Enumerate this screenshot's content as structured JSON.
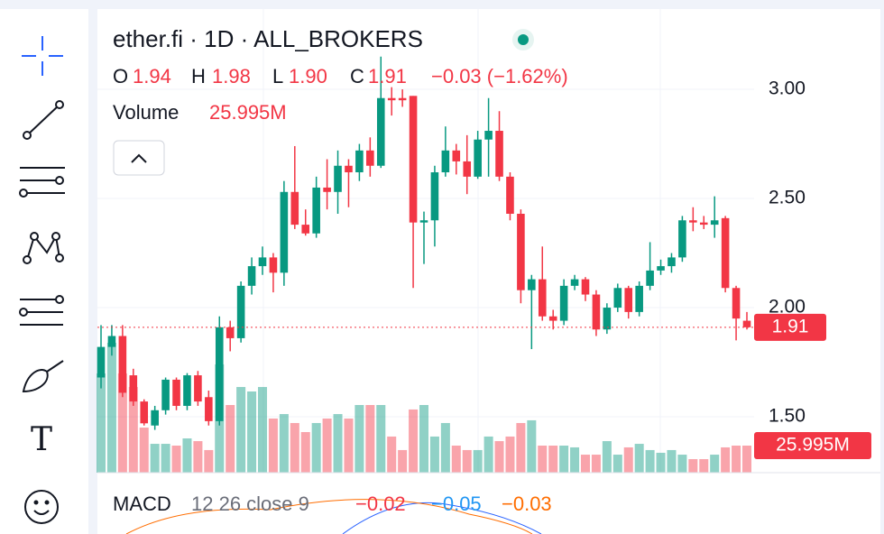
{
  "header": {
    "title": "ether.fi · 1D · ALL_BROKERS",
    "o_label": "O",
    "o": "1.94",
    "h_label": "H",
    "h": "1.98",
    "l_label": "L",
    "l": "1.90",
    "c_label": "C",
    "c": "1.91",
    "change": "−0.03 (−1.62%)",
    "volume_label": "Volume",
    "volume": "25.995M",
    "macd_label": "MACD",
    "macd_params": "12 26 close 9",
    "macd": "−0.02",
    "signal": "−0.05",
    "hist": "−0.03",
    "toggle": "^"
  },
  "toolbar": {
    "text_tool": "T"
  },
  "chart_data": {
    "type": "candlestick",
    "open": [
      1.68,
      1.82,
      1.87,
      1.69,
      1.57,
      1.46,
      1.53,
      1.67,
      1.55,
      1.69,
      1.59,
      1.48,
      1.91,
      1.86,
      2.1,
      2.19,
      2.23,
      2.16,
      2.53,
      2.38,
      2.34,
      2.55,
      2.53,
      2.65,
      2.62,
      2.72,
      2.65,
      2.96,
      2.96,
      2.97,
      2.39,
      2.4,
      2.62,
      2.72,
      2.67,
      2.6,
      2.77,
      2.81,
      2.6,
      2.43,
      2.08,
      2.13,
      1.96,
      1.94,
      2.1,
      2.13,
      2.06,
      1.9,
      2.0,
      2.09,
      1.98,
      2.1,
      2.17,
      2.19,
      2.23,
      2.4,
      2.39,
      2.38,
      2.41,
      2.09,
      1.94
    ],
    "high": [
      1.92,
      1.92,
      1.92,
      1.72,
      1.58,
      1.55,
      1.68,
      1.68,
      1.7,
      1.71,
      1.62,
      1.96,
      1.94,
      2.12,
      2.23,
      2.28,
      2.25,
      2.58,
      2.74,
      2.45,
      2.6,
      2.68,
      2.72,
      2.68,
      2.75,
      2.78,
      3.15,
      3.01,
      3.0,
      2.97,
      2.44,
      2.65,
      2.83,
      2.75,
      2.79,
      2.81,
      2.96,
      2.9,
      2.62,
      2.45,
      2.15,
      2.28,
      1.99,
      2.13,
      2.15,
      2.14,
      2.08,
      2.02,
      2.11,
      2.1,
      2.12,
      2.3,
      2.22,
      2.25,
      2.42,
      2.46,
      2.42,
      2.51,
      2.42,
      2.1,
      1.98
    ],
    "low": [
      1.63,
      1.78,
      1.59,
      1.55,
      1.46,
      1.44,
      1.51,
      1.53,
      1.53,
      1.55,
      1.46,
      1.46,
      1.8,
      1.84,
      2.06,
      2.15,
      2.07,
      2.1,
      2.36,
      2.33,
      2.32,
      2.45,
      2.43,
      2.46,
      2.58,
      2.6,
      2.64,
      2.88,
      2.92,
      2.09,
      2.2,
      2.28,
      2.6,
      2.61,
      2.52,
      2.59,
      2.6,
      2.58,
      2.4,
      2.02,
      1.81,
      1.94,
      1.9,
      1.92,
      2.08,
      2.03,
      1.87,
      1.88,
      1.98,
      1.95,
      1.96,
      2.08,
      2.15,
      2.16,
      2.21,
      2.35,
      2.36,
      2.32,
      2.07,
      1.85,
      1.9
    ],
    "close": [
      1.82,
      1.87,
      1.61,
      1.57,
      1.47,
      1.53,
      1.67,
      1.55,
      1.69,
      1.57,
      1.48,
      1.91,
      1.86,
      2.1,
      2.19,
      2.23,
      2.16,
      2.53,
      2.38,
      2.34,
      2.55,
      2.53,
      2.65,
      2.62,
      2.72,
      2.65,
      2.96,
      2.95,
      2.95,
      2.39,
      2.4,
      2.62,
      2.72,
      2.67,
      2.6,
      2.77,
      2.81,
      2.6,
      2.43,
      2.08,
      2.13,
      1.96,
      1.94,
      2.1,
      2.13,
      2.06,
      1.9,
      2.0,
      2.09,
      1.98,
      2.1,
      2.17,
      2.19,
      2.23,
      2.4,
      2.39,
      2.38,
      2.4,
      2.09,
      1.95,
      1.91
    ],
    "volume": [
      95.3,
      124.8,
      95.3,
      82.3,
      43.3,
      27.7,
      27.7,
      26.0,
      32.9,
      30.3,
      21.7,
      104.0,
      65.0,
      82.3,
      78.0,
      82.3,
      52.0,
      56.3,
      47.7,
      39.0,
      47.7,
      52.0,
      56.3,
      52.0,
      65.0,
      65.0,
      65.0,
      34.7,
      21.7,
      60.7,
      65.0,
      34.7,
      47.7,
      26.0,
      21.7,
      21.7,
      34.7,
      30.3,
      34.7,
      47.7,
      50.3,
      26.0,
      26.0,
      26.0,
      24.3,
      17.3,
      17.3,
      30.3,
      17.3,
      24.3,
      27.7,
      21.7,
      19.1,
      21.7,
      17.3,
      13.0,
      13.0,
      17.3,
      24.3,
      26.0,
      25.995
    ],
    "volume_label": "25.995M",
    "last_price_label": "1.91",
    "up_color": "#089981",
    "down_color": "#f23645",
    "ylim": [
      1.244,
      3.368
    ],
    "yticks": [
      {
        "value": 1.5,
        "label": "1.50"
      },
      {
        "value": 2.0,
        "label": "2.00"
      },
      {
        "value": 2.5,
        "label": "2.50"
      },
      {
        "value": 3.0,
        "label": "3.00"
      }
    ],
    "grid": true
  }
}
